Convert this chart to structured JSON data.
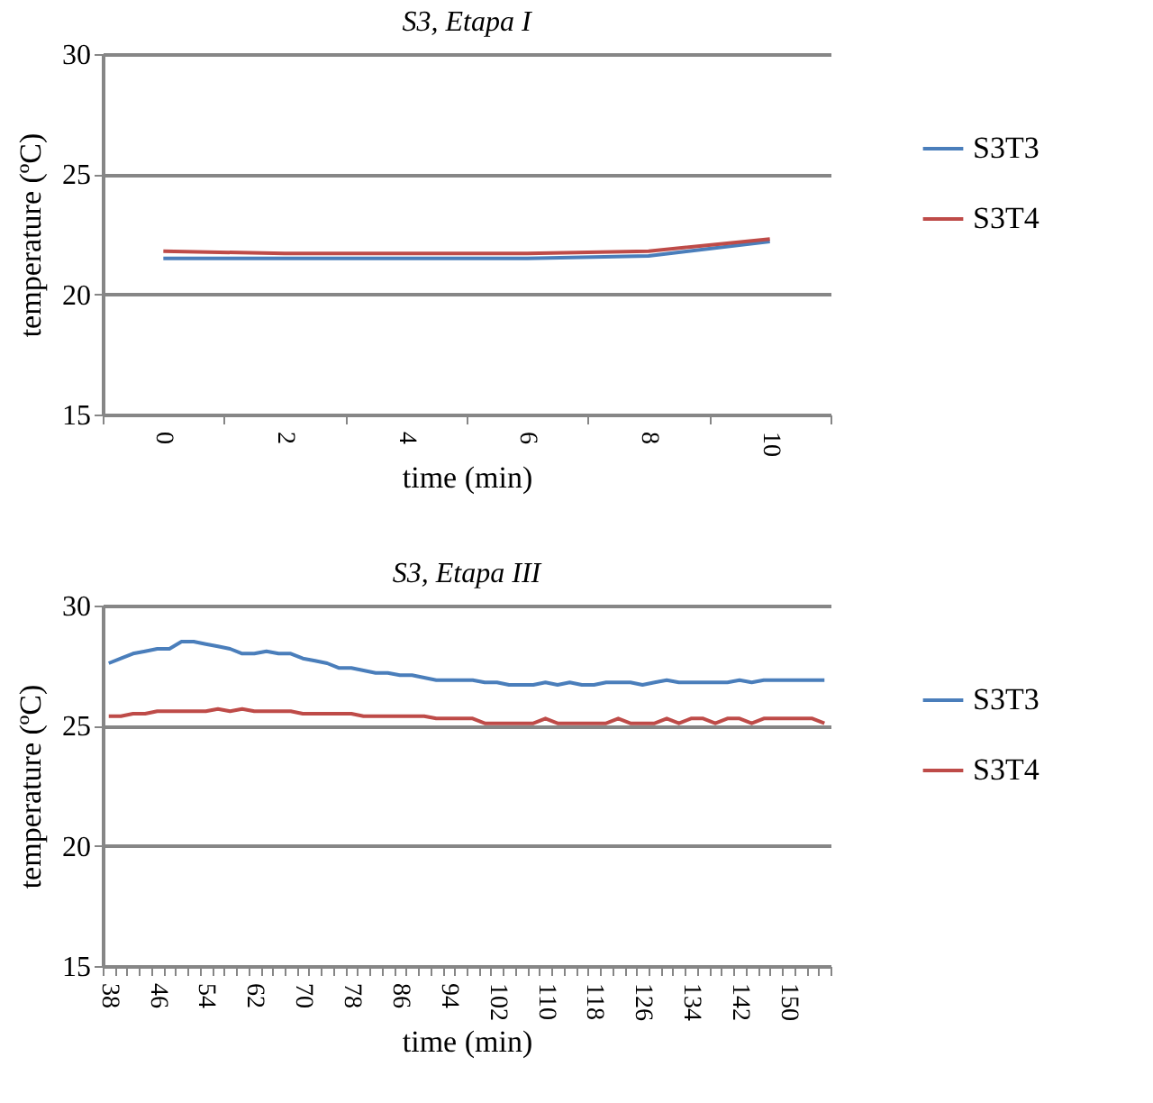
{
  "chart_data": [
    {
      "type": "line",
      "title": "S3, Etapa  I",
      "xlabel": "time (min)",
      "ylabel": "temperature (ºC)",
      "categories": [
        "0",
        "2",
        "4",
        "6",
        "8",
        "10"
      ],
      "series": [
        {
          "name": "S3T3",
          "color": "#4a7ebb",
          "values": [
            21.5,
            21.5,
            21.5,
            21.5,
            21.6,
            22.2
          ]
        },
        {
          "name": "S3T4",
          "color": "#be4b48",
          "values": [
            21.8,
            21.7,
            21.7,
            21.7,
            21.8,
            22.3
          ]
        }
      ],
      "ylim": [
        15,
        30
      ],
      "yticks": [
        15,
        20,
        25,
        30
      ],
      "grid": "y",
      "legend": "right"
    },
    {
      "type": "line",
      "title": "S3, Etapa III",
      "xlabel": "time (min)",
      "ylabel": "temperature (ºC)",
      "categories": [
        "38",
        null,
        null,
        null,
        "46",
        null,
        null,
        null,
        "54",
        null,
        null,
        null,
        "62",
        null,
        null,
        null,
        "70",
        null,
        null,
        null,
        "78",
        null,
        null,
        null,
        "86",
        null,
        null,
        null,
        "94",
        null,
        null,
        null,
        "102",
        null,
        null,
        null,
        "110",
        null,
        null,
        null,
        "118",
        null,
        null,
        null,
        "126",
        null,
        null,
        null,
        "134",
        null,
        null,
        null,
        "142",
        null,
        null,
        null,
        "150",
        null,
        null,
        null
      ],
      "series": [
        {
          "name": "S3T3",
          "color": "#4a7ebb",
          "values": [
            27.6,
            27.8,
            28.0,
            28.1,
            28.2,
            28.2,
            28.5,
            28.5,
            28.4,
            28.3,
            28.2,
            28.0,
            28.0,
            28.1,
            28.0,
            28.0,
            27.8,
            27.7,
            27.6,
            27.4,
            27.4,
            27.3,
            27.2,
            27.2,
            27.1,
            27.1,
            27.0,
            26.9,
            26.9,
            26.9,
            26.9,
            26.8,
            26.8,
            26.7,
            26.7,
            26.7,
            26.8,
            26.7,
            26.8,
            26.7,
            26.7,
            26.8,
            26.8,
            26.8,
            26.7,
            26.8,
            26.9,
            26.8,
            26.8,
            26.8,
            26.8,
            26.8,
            26.9,
            26.8,
            26.9,
            26.9,
            26.9,
            26.9,
            26.9,
            26.9
          ]
        },
        {
          "name": "S3T4",
          "color": "#be4b48",
          "values": [
            25.4,
            25.4,
            25.5,
            25.5,
            25.6,
            25.6,
            25.6,
            25.6,
            25.6,
            25.7,
            25.6,
            25.7,
            25.6,
            25.6,
            25.6,
            25.6,
            25.5,
            25.5,
            25.5,
            25.5,
            25.5,
            25.4,
            25.4,
            25.4,
            25.4,
            25.4,
            25.4,
            25.3,
            25.3,
            25.3,
            25.3,
            25.1,
            25.1,
            25.1,
            25.1,
            25.1,
            25.3,
            25.1,
            25.1,
            25.1,
            25.1,
            25.1,
            25.3,
            25.1,
            25.1,
            25.1,
            25.3,
            25.1,
            25.3,
            25.3,
            25.1,
            25.3,
            25.3,
            25.1,
            25.3,
            25.3,
            25.3,
            25.3,
            25.3,
            25.1
          ]
        }
      ],
      "ylim": [
        15,
        30
      ],
      "yticks": [
        15,
        20,
        25,
        30
      ],
      "grid": "y",
      "legend": "right"
    }
  ]
}
